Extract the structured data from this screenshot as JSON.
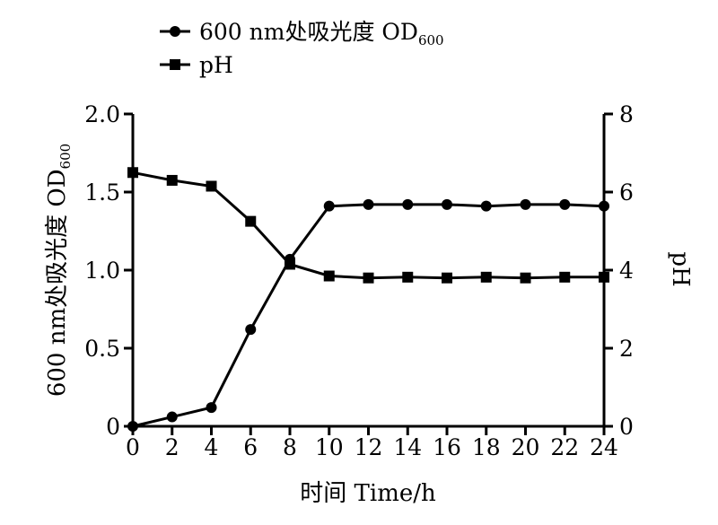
{
  "chart_data": {
    "type": "line",
    "x": [
      0,
      2,
      4,
      6,
      8,
      10,
      12,
      14,
      16,
      18,
      20,
      22,
      24
    ],
    "xticks": [
      "0",
      "2",
      "4",
      "6",
      "8",
      "10",
      "12",
      "14",
      "16",
      "18",
      "20",
      "22",
      "24"
    ],
    "xlabel": "时间  Time/h",
    "xlim": [
      0,
      24
    ],
    "ylabel_left": {
      "main": "600 nm处吸光度  OD",
      "sub": "600"
    },
    "ylim_left": [
      0,
      2.0
    ],
    "yticks_left": [
      "0",
      "0.5",
      "1.0",
      "1.5",
      "2.0"
    ],
    "ylabel_right": "pH",
    "ylim_right": [
      0,
      8
    ],
    "yticks_right": [
      "0",
      "2",
      "4",
      "6",
      "8"
    ],
    "grid": false,
    "legend_position": "top-left",
    "series": [
      {
        "name": "600 nm处吸光度  OD",
        "name_sub": "600",
        "axis": "left",
        "marker": "circle",
        "color": "#000000",
        "values": [
          0.0,
          0.06,
          0.12,
          0.62,
          1.07,
          1.41,
          1.42,
          1.42,
          1.42,
          1.41,
          1.42,
          1.42,
          1.41
        ]
      },
      {
        "name": "pH",
        "axis": "right",
        "marker": "square",
        "color": "#000000",
        "values": [
          6.5,
          6.3,
          6.15,
          5.25,
          4.15,
          3.85,
          3.8,
          3.82,
          3.8,
          3.82,
          3.8,
          3.82,
          3.82
        ]
      }
    ]
  }
}
